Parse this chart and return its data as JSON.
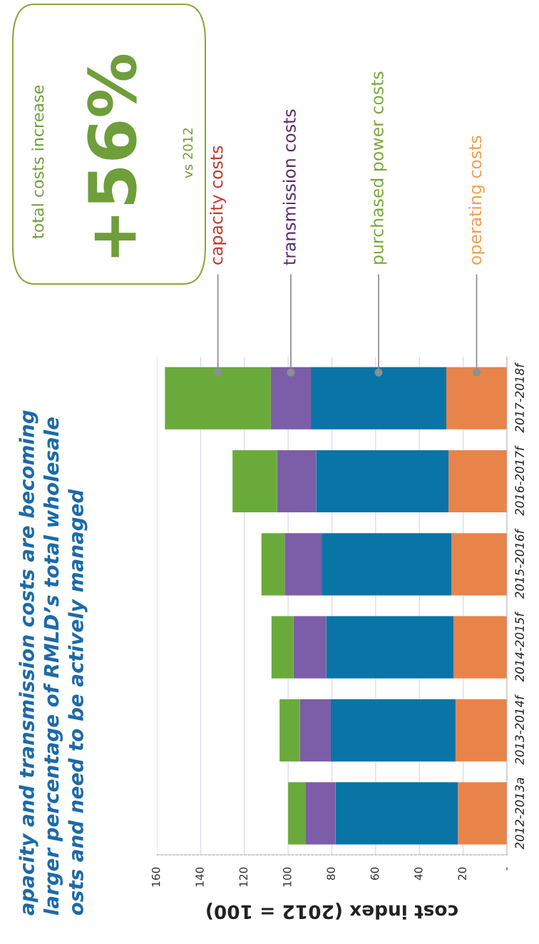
{
  "chart_data": {
    "type": "bar",
    "stacked": true,
    "orientation": "horizontal",
    "title": "apacity and transmission costs are becoming\nlarger percentage of RMLD’s total wholesale\nosts and need to be actively managed",
    "xlabel": "cost index (2012 = 100)",
    "categories": [
      "2017-2018f",
      "2016-2017f",
      "2015-2016f",
      "2014-2015f",
      "2013-2014f",
      "2012-2013a"
    ],
    "series": [
      {
        "name": "operating costs",
        "color": "#e8844a",
        "values": [
          27.7,
          26.7,
          25.3,
          24.4,
          23.5,
          22.4
        ]
      },
      {
        "name": "purchased power costs",
        "color": "#0a74a6",
        "values": [
          61.9,
          60.5,
          59.4,
          58.2,
          57.0,
          55.9
        ]
      },
      {
        "name": "transmission costs",
        "color": "#7b5ea7",
        "values": [
          18.3,
          17.8,
          16.9,
          14.9,
          14.1,
          13.6
        ]
      },
      {
        "name": "capacity costs",
        "color": "#6aaa3a",
        "values": [
          48.4,
          20.4,
          10.6,
          10.1,
          9.3,
          8.1
        ]
      }
    ],
    "xlim": [
      160,
      0
    ],
    "xticks": [
      {
        "value": 0,
        "label": "-"
      },
      20,
      40,
      60,
      80,
      100,
      120,
      140,
      160
    ],
    "grid": "x",
    "legend": false,
    "annotations": [
      "total costs increase",
      "+56%",
      "vs 2012"
    ]
  }
}
